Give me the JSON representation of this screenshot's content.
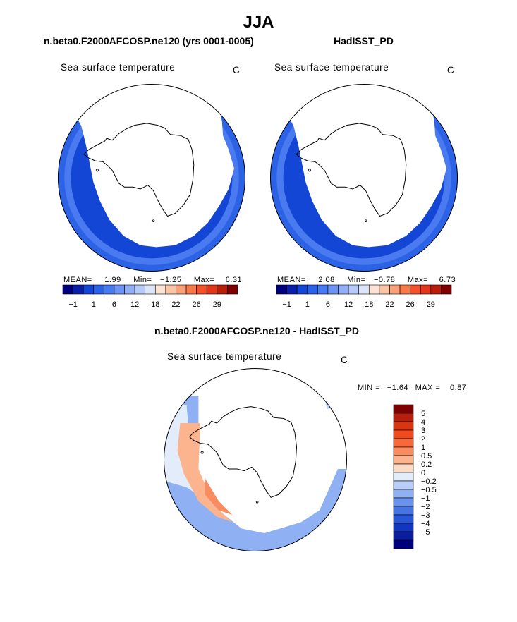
{
  "page": {
    "title": "JJA"
  },
  "panels": [
    {
      "title": "n.beta0.F2000AFCOSP.ne120 (yrs 0001-0005)",
      "field": "Sea surface temperature",
      "units": "C",
      "stats": {
        "mean_label": "MEAN=",
        "mean": "1.99",
        "min_label": "Min=",
        "min": "−1.25",
        "max_label": "Max=",
        "max": "6.31"
      }
    },
    {
      "title": "HadISST_PD",
      "field": "Sea surface temperature",
      "units": "C",
      "stats": {
        "mean_label": "MEAN=",
        "mean": "2.08",
        "min_label": "Min=",
        "min": "−0.78",
        "max_label": "Max=",
        "max": "6.73"
      }
    }
  ],
  "diff_panel": {
    "title": "n.beta0.F2000AFCOSP.ne120 - HadISST_PD",
    "field": "Sea surface temperature",
    "units": "C",
    "stats": {
      "min_label": "MIN =",
      "min": "−1.64",
      "max_label": "MAX =",
      "max": "0.87"
    }
  },
  "chart_data": [
    {
      "type": "heatmap",
      "title": "n.beta0.F2000AFCOSP.ne120 (yrs 0001-0005)",
      "subtitle": "Sea surface temperature",
      "units": "C",
      "projection": "south polar stereographic",
      "mean": 1.99,
      "min": -1.25,
      "max": 6.31,
      "colorbar_labels": [
        "−1",
        "1",
        "6",
        "12",
        "18",
        "22",
        "26",
        "29"
      ],
      "colorbar_colors": [
        "#00007f",
        "#0a1fa8",
        "#1446d6",
        "#2c62e6",
        "#4a7af0",
        "#6d93f5",
        "#92aef7",
        "#b7cbf9",
        "#dbe6fb",
        "#fde3d4",
        "#fbc6a8",
        "#f9a27a",
        "#f77a4a",
        "#f4522a",
        "#e0361a",
        "#b81e0c",
        "#7f0000"
      ]
    },
    {
      "type": "heatmap",
      "title": "HadISST_PD",
      "subtitle": "Sea surface temperature",
      "units": "C",
      "projection": "south polar stereographic",
      "mean": 2.08,
      "min": -0.78,
      "max": 6.73,
      "colorbar_labels": [
        "−1",
        "1",
        "6",
        "12",
        "18",
        "22",
        "26",
        "29"
      ],
      "colorbar_colors": [
        "#00007f",
        "#0a1fa8",
        "#1446d6",
        "#2c62e6",
        "#4a7af0",
        "#6d93f5",
        "#92aef7",
        "#b7cbf9",
        "#dbe6fb",
        "#fde3d4",
        "#fbc6a8",
        "#f9a27a",
        "#f77a4a",
        "#f4522a",
        "#e0361a",
        "#b81e0c",
        "#7f0000"
      ]
    },
    {
      "type": "heatmap",
      "title": "n.beta0.F2000AFCOSP.ne120 - HadISST_PD",
      "subtitle": "Sea surface temperature",
      "units": "C",
      "projection": "south polar stereographic",
      "min": -1.64,
      "max": 0.87,
      "colorbar_labels": [
        "5",
        "4",
        "3",
        "2",
        "1",
        "0.5",
        "0.2",
        "0",
        "−0.2",
        "−0.5",
        "−1",
        "−2",
        "−3",
        "−4",
        "−5"
      ],
      "colorbar_colors": [
        "#7f0000",
        "#b81e0c",
        "#d83512",
        "#f04a1e",
        "#f7693c",
        "#fa8c62",
        "#fcb48e",
        "#fddac4",
        "#e2ecfb",
        "#b8cef6",
        "#8fb0f2",
        "#6a92ec",
        "#4674e4",
        "#2855d8",
        "#1236c2",
        "#0a1fa0",
        "#00007f"
      ]
    }
  ]
}
